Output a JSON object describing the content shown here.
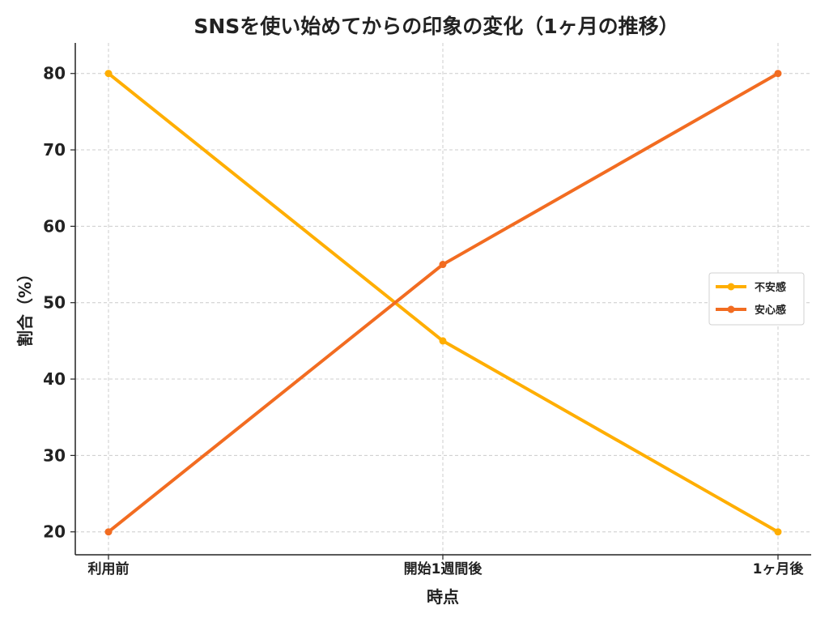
{
  "chart_data": {
    "type": "line",
    "title": "SNSを使い始めてからの印象の変化（1ヶ月の推移）",
    "xlabel": "時点",
    "ylabel": "割合（%）",
    "categories": [
      "利用前",
      "開始1週間後",
      "1ヶ月後"
    ],
    "ylim": [
      17,
      84
    ],
    "yticks": [
      20,
      30,
      40,
      50,
      60,
      70,
      80
    ],
    "grid": true,
    "legend_position": "center-right",
    "series": [
      {
        "name": "不安感",
        "values": [
          80,
          45,
          20
        ],
        "color": "#FFAE00"
      },
      {
        "name": "安心感",
        "values": [
          20,
          55,
          80
        ],
        "color": "#F26C21"
      }
    ]
  }
}
